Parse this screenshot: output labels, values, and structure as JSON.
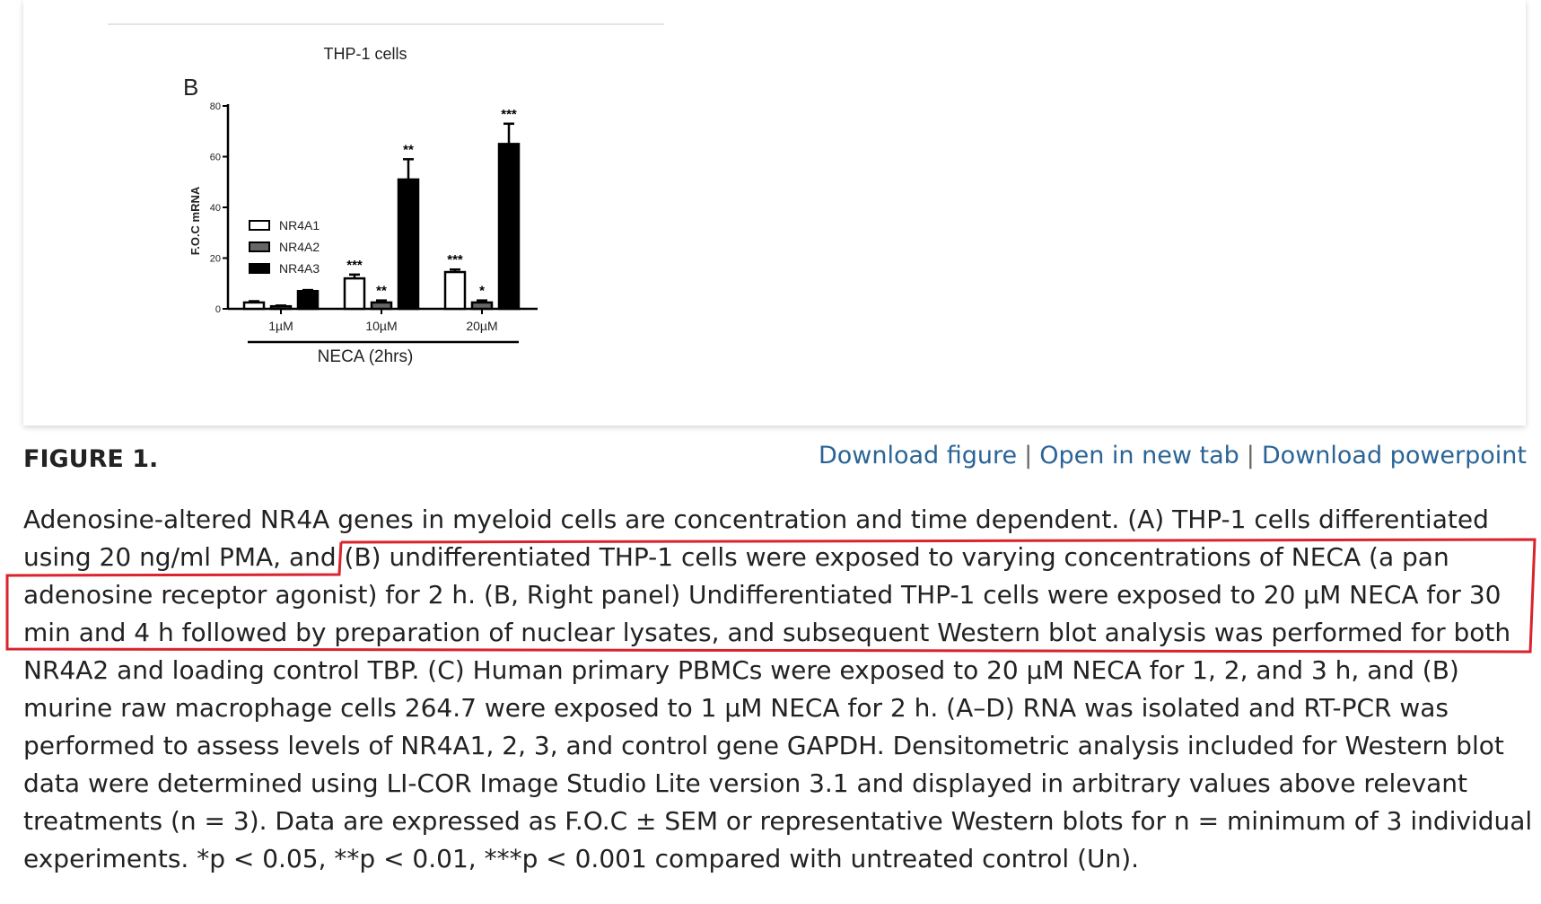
{
  "figure": {
    "panel_label": "B",
    "heading": "FIGURE 1.",
    "links": [
      "Download figure",
      "Open in new tab",
      "Download powerpoint"
    ]
  },
  "chart_data": {
    "type": "bar",
    "title": "THP-1 cells",
    "ylabel": "F.O.C mRNA",
    "xlabel": "NECA (2hrs)",
    "ylim": [
      0,
      80
    ],
    "yticks": [
      "0",
      "20",
      "40",
      "60",
      "80"
    ],
    "categories": [
      "1µM",
      "10µM",
      "20µM"
    ],
    "legend_position": "upper-left",
    "series": [
      {
        "name": "NR4A1",
        "color": "#ffffff",
        "values": [
          2.5,
          12,
          14.5
        ],
        "errors": [
          0.5,
          1.5,
          1.0
        ],
        "significance": [
          "",
          "***",
          "***"
        ]
      },
      {
        "name": "NR4A2",
        "color": "#666666",
        "values": [
          1,
          2.5,
          2.5
        ],
        "errors": [
          0.3,
          0.8,
          0.8
        ],
        "significance": [
          "",
          "**",
          "*"
        ]
      },
      {
        "name": "NR4A3",
        "color": "#000000",
        "values": [
          7,
          51,
          65
        ],
        "errors": [
          0.4,
          8,
          8
        ],
        "significance": [
          "",
          "**",
          "***"
        ]
      }
    ]
  },
  "caption": {
    "lines": [
      "Adenosine-altered NR4A genes in myeloid cells are concentration and time dependent. (A) THP-1 cells differentiated",
      "using 20 ng/ml PMA, and (B) undifferentiated THP-1 cells were exposed to varying concentrations of NECA (a pan",
      "adenosine receptor agonist) for 2 h. (B, Right panel) Undifferentiated THP-1 cells were exposed to 20 µM NECA for 30",
      "min and 4 h followed by preparation of nuclear lysates, and subsequent Western blot analysis was performed for both",
      "NR4A2 and loading control TBP. (C) Human primary PBMCs were exposed to 20 µM NECA for 1, 2, and 3 h, and (B)",
      "murine raw macrophage cells 264.7 were exposed to 1 µM NECA for 2 h. (A–D) RNA was isolated and RT-PCR was",
      "performed to assess levels of NR4A1, 2, 3, and control gene GAPDH. Densitometric analysis included for Western blot",
      "data were determined using LI-COR Image Studio Lite version 3.1 and displayed in arbitrary values above relevant",
      "treatments (n = 3). Data are expressed as F.O.C ± SEM or representative Western blots for n = minimum of 3 individual",
      "experiments. *p < 0.05, **p < 0.01, ***p < 0.001 compared with untreated control (Un)."
    ]
  },
  "annotation": {
    "color": "#d9232d"
  }
}
